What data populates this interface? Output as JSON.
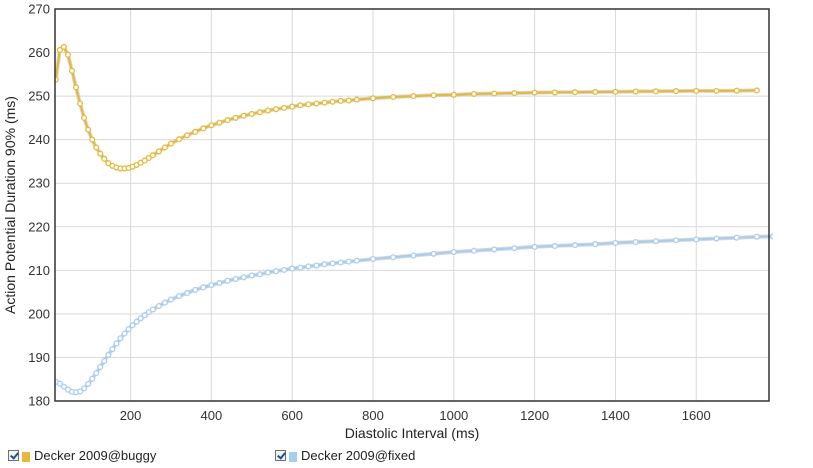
{
  "chart_data": {
    "type": "line",
    "xlabel": "Diastolic Interval (ms)",
    "ylabel": "Action Potential Duration 90% (ms)",
    "xlim": [
      13,
      1780
    ],
    "ylim": [
      180,
      270
    ],
    "xticks": [
      200,
      400,
      600,
      800,
      1000,
      1200,
      1400,
      1600
    ],
    "yticks": [
      180,
      190,
      200,
      210,
      220,
      230,
      240,
      250,
      260,
      270
    ],
    "grid": true,
    "legend_position": "bottom-left",
    "series": [
      {
        "name": "Decker 2009@buggy",
        "color": "#e6b93a",
        "x": [
          15,
          25,
          35,
          45,
          55,
          65,
          75,
          85,
          95,
          105,
          115,
          125,
          135,
          145,
          155,
          165,
          175,
          185,
          195,
          205,
          215,
          225,
          235,
          245,
          255,
          270,
          285,
          300,
          320,
          340,
          360,
          380,
          400,
          420,
          440,
          460,
          480,
          500,
          520,
          540,
          560,
          580,
          600,
          620,
          640,
          660,
          680,
          700,
          720,
          740,
          760,
          800,
          850,
          900,
          950,
          1000,
          1050,
          1100,
          1150,
          1200,
          1250,
          1300,
          1350,
          1400,
          1450,
          1500,
          1550,
          1600,
          1650,
          1700,
          1750
        ],
        "y": [
          253.8,
          260.6,
          261.3,
          259.5,
          255.8,
          252.0,
          248.3,
          245.0,
          242.3,
          240.0,
          238.2,
          236.8,
          235.6,
          234.6,
          234.0,
          233.6,
          233.4,
          233.4,
          233.5,
          233.8,
          234.2,
          234.7,
          235.2,
          235.8,
          236.4,
          237.3,
          238.2,
          239.1,
          240.1,
          241.0,
          241.8,
          242.6,
          243.3,
          243.9,
          244.5,
          245.0,
          245.5,
          245.9,
          246.3,
          246.7,
          247.0,
          247.3,
          247.6,
          247.9,
          248.1,
          248.3,
          248.5,
          248.7,
          248.9,
          249.0,
          249.2,
          249.5,
          249.8,
          250.0,
          250.2,
          250.3,
          250.5,
          250.6,
          250.7,
          250.8,
          250.85,
          250.9,
          250.95,
          251.0,
          251.05,
          251.1,
          251.15,
          251.2,
          251.2,
          251.25,
          251.3
        ]
      },
      {
        "name": "Decker 2009@fixed",
        "color": "#a9cdf0",
        "x": [
          15,
          25,
          35,
          45,
          55,
          65,
          75,
          85,
          95,
          105,
          115,
          125,
          135,
          145,
          155,
          165,
          175,
          185,
          195,
          205,
          215,
          225,
          235,
          245,
          255,
          270,
          285,
          300,
          320,
          340,
          360,
          380,
          400,
          420,
          440,
          460,
          480,
          500,
          520,
          540,
          560,
          580,
          600,
          620,
          640,
          660,
          680,
          700,
          720,
          740,
          760,
          800,
          850,
          900,
          950,
          1000,
          1050,
          1100,
          1150,
          1200,
          1250,
          1300,
          1350,
          1400,
          1450,
          1500,
          1550,
          1600,
          1650,
          1700,
          1750,
          1790
        ],
        "y": [
          184.4,
          184.0,
          183.3,
          182.6,
          182.1,
          182.0,
          182.2,
          182.9,
          183.9,
          185.1,
          186.4,
          187.8,
          189.2,
          190.6,
          191.9,
          193.2,
          194.4,
          195.5,
          196.5,
          197.4,
          198.2,
          199.0,
          199.7,
          200.4,
          201.0,
          201.8,
          202.6,
          203.3,
          204.1,
          204.8,
          205.5,
          206.1,
          206.6,
          207.1,
          207.6,
          208.0,
          208.4,
          208.8,
          209.1,
          209.5,
          209.8,
          210.1,
          210.4,
          210.6,
          210.9,
          211.1,
          211.4,
          211.6,
          211.8,
          212.0,
          212.2,
          212.6,
          213.0,
          213.4,
          213.8,
          214.2,
          214.5,
          214.8,
          215.1,
          215.4,
          215.6,
          215.8,
          216.0,
          216.3,
          216.5,
          216.7,
          216.9,
          217.1,
          217.3,
          217.5,
          217.7,
          217.8
        ]
      }
    ]
  },
  "legend": {
    "items": [
      {
        "label": "Decker 2009@buggy",
        "color": "#e6b93a",
        "checked": true
      },
      {
        "label": "Decker 2009@fixed",
        "color": "#a9cdf0",
        "checked": true
      }
    ]
  }
}
